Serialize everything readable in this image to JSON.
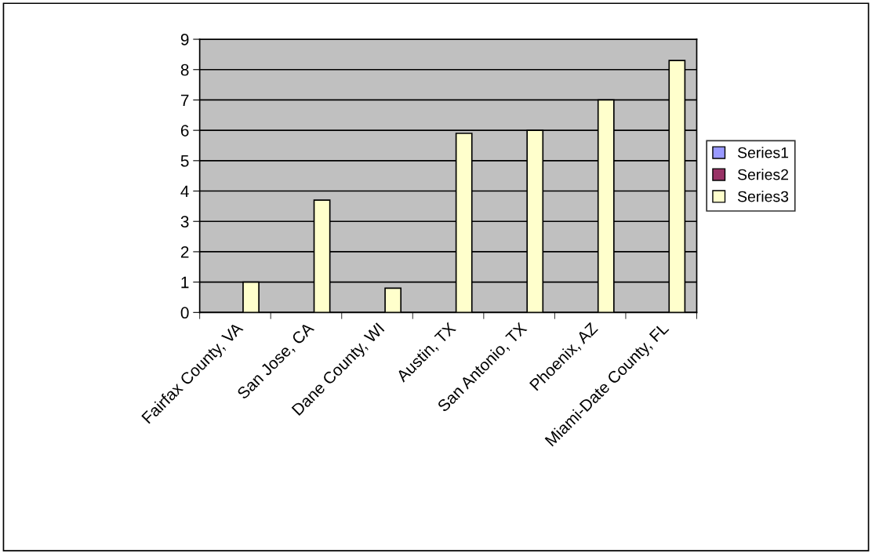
{
  "chart_data": {
    "type": "bar",
    "categories": [
      "Fairfax County, VA",
      "San Jose, CA",
      "Dane County, WI",
      "Austin, TX",
      "San Antonio, TX",
      "Phoenix, AZ",
      "Miami-Date County, FL"
    ],
    "series": [
      {
        "name": "Series1",
        "color": "#9999ff",
        "values": [
          null,
          null,
          null,
          null,
          null,
          null,
          null
        ]
      },
      {
        "name": "Series2",
        "color": "#993366",
        "values": [
          null,
          null,
          null,
          null,
          null,
          null,
          null
        ]
      },
      {
        "name": "Series3",
        "color": "#ffffcc",
        "values": [
          1.0,
          3.7,
          0.8,
          5.9,
          6.0,
          7.0,
          8.3
        ]
      }
    ],
    "ylim": [
      0,
      9
    ],
    "yticks": [
      0,
      1,
      2,
      3,
      4,
      5,
      6,
      7,
      8,
      9
    ],
    "grid": "y",
    "legend": "right"
  }
}
